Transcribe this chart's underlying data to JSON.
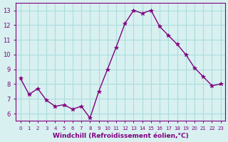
{
  "x": [
    0,
    1,
    2,
    3,
    4,
    5,
    6,
    7,
    8,
    9,
    10,
    11,
    12,
    13,
    14,
    15,
    16,
    17,
    18,
    19,
    20,
    21,
    22,
    23
  ],
  "y": [
    8.4,
    7.3,
    7.7,
    6.9,
    6.5,
    6.6,
    6.3,
    6.5,
    5.7,
    7.5,
    9.0,
    10.5,
    12.1,
    13.0,
    12.8,
    13.0,
    11.9,
    11.3,
    10.7,
    10.0,
    9.1,
    8.5,
    7.9,
    8.0
  ],
  "line_color": "#800080",
  "marker": "*",
  "marker_size": 4,
  "bg_color": "#d8f0f0",
  "grid_color": "#aadddd",
  "xlabel": "Windchill (Refroidissement éolien,°C)",
  "xlabel_color": "#800080",
  "tick_color": "#800080",
  "xlim": [
    -0.5,
    23.5
  ],
  "ylim": [
    5.5,
    13.5
  ],
  "yticks": [
    6,
    7,
    8,
    9,
    10,
    11,
    12,
    13
  ],
  "xticks": [
    0,
    1,
    2,
    3,
    4,
    5,
    6,
    7,
    8,
    9,
    10,
    11,
    12,
    13,
    14,
    15,
    16,
    17,
    18,
    19,
    20,
    21,
    22,
    23
  ]
}
